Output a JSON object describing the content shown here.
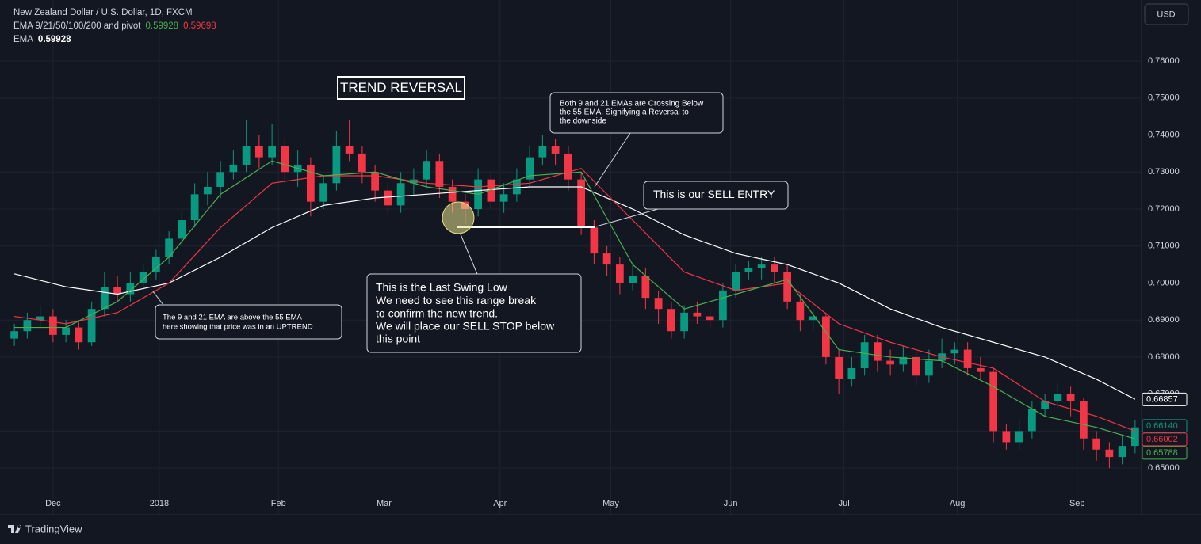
{
  "header": {
    "symbol": "New Zealand Dollar / U.S. Dollar, 1D, FXCM",
    "indicator": "EMA 9/21/50/100/200 and pivot",
    "indicator_values": [
      0.59928,
      0.59698
    ],
    "indicator_2": "EMA",
    "indicator_2_value": 0.59928,
    "currency": "USD"
  },
  "footer": {
    "brand": "TradingView"
  },
  "chart_data": {
    "type": "candlestick",
    "up_color": "#089981",
    "down_color": "#f23645",
    "grid": true,
    "xlim": [
      -0.5,
      87.5
    ],
    "xticks": [
      {
        "value": 3,
        "label": "Dec"
      },
      {
        "value": 11.25,
        "label": "2018"
      },
      {
        "value": 20.5,
        "label": "Feb"
      },
      {
        "value": 28.7,
        "label": "Mar"
      },
      {
        "value": 37.7,
        "label": "Apr"
      },
      {
        "value": 46.3,
        "label": "May"
      },
      {
        "value": 55.6,
        "label": "Jun"
      },
      {
        "value": 64.4,
        "label": "Jul"
      },
      {
        "value": 73.2,
        "label": "Aug"
      },
      {
        "value": 82.5,
        "label": "Sep"
      }
    ],
    "ylim": [
      0.6374,
      0.7765
    ],
    "yticks": [
      {
        "value": 0.65,
        "label": "0.65000"
      },
      {
        "value": 0.66,
        "label": "0.66000"
      },
      {
        "value": 0.67,
        "label": "0.67000"
      },
      {
        "value": 0.68,
        "label": "0.68000"
      },
      {
        "value": 0.69,
        "label": "0.69000"
      },
      {
        "value": 0.7,
        "label": "0.70000"
      },
      {
        "value": 0.71,
        "label": "0.71000"
      },
      {
        "value": 0.72,
        "label": "0.72000"
      },
      {
        "value": 0.73,
        "label": "0.73000"
      },
      {
        "value": 0.74,
        "label": "0.74000"
      },
      {
        "value": 0.75,
        "label": "0.75000"
      },
      {
        "value": 0.76,
        "label": "0.76000"
      }
    ],
    "candles": [
      [
        0.685,
        0.689,
        0.683,
        0.687
      ],
      [
        0.687,
        0.692,
        0.685,
        0.69
      ],
      [
        0.69,
        0.694,
        0.688,
        0.691
      ],
      [
        0.691,
        0.693,
        0.684,
        0.686
      ],
      [
        0.686,
        0.69,
        0.684,
        0.688
      ],
      [
        0.688,
        0.69,
        0.682,
        0.684
      ],
      [
        0.684,
        0.695,
        0.683,
        0.693
      ],
      [
        0.693,
        0.703,
        0.691,
        0.699
      ],
      [
        0.699,
        0.702,
        0.695,
        0.697
      ],
      [
        0.697,
        0.703,
        0.695,
        0.7
      ],
      [
        0.7,
        0.705,
        0.698,
        0.703
      ],
      [
        0.703,
        0.709,
        0.701,
        0.707
      ],
      [
        0.707,
        0.714,
        0.705,
        0.712
      ],
      [
        0.712,
        0.719,
        0.71,
        0.717
      ],
      [
        0.717,
        0.727,
        0.715,
        0.724
      ],
      [
        0.724,
        0.73,
        0.721,
        0.726
      ],
      [
        0.726,
        0.733,
        0.723,
        0.73
      ],
      [
        0.73,
        0.736,
        0.728,
        0.732
      ],
      [
        0.732,
        0.744,
        0.73,
        0.737
      ],
      [
        0.737,
        0.74,
        0.731,
        0.734
      ],
      [
        0.734,
        0.743,
        0.732,
        0.737
      ],
      [
        0.737,
        0.739,
        0.727,
        0.73
      ],
      [
        0.73,
        0.736,
        0.726,
        0.732
      ],
      [
        0.732,
        0.734,
        0.718,
        0.722
      ],
      [
        0.722,
        0.729,
        0.72,
        0.727
      ],
      [
        0.727,
        0.741,
        0.725,
        0.737
      ],
      [
        0.737,
        0.744,
        0.733,
        0.735
      ],
      [
        0.735,
        0.737,
        0.727,
        0.73
      ],
      [
        0.73,
        0.732,
        0.722,
        0.725
      ],
      [
        0.725,
        0.727,
        0.719,
        0.721
      ],
      [
        0.721,
        0.73,
        0.719,
        0.727
      ],
      [
        0.727,
        0.731,
        0.724,
        0.728
      ],
      [
        0.728,
        0.736,
        0.726,
        0.733
      ],
      [
        0.733,
        0.735,
        0.723,
        0.726
      ],
      [
        0.726,
        0.728,
        0.719,
        0.722
      ],
      [
        0.722,
        0.724,
        0.716,
        0.72
      ],
      [
        0.72,
        0.731,
        0.718,
        0.728
      ],
      [
        0.728,
        0.73,
        0.72,
        0.722
      ],
      [
        0.722,
        0.727,
        0.719,
        0.724
      ],
      [
        0.724,
        0.731,
        0.722,
        0.728
      ],
      [
        0.728,
        0.737,
        0.726,
        0.734
      ],
      [
        0.734,
        0.74,
        0.732,
        0.737
      ],
      [
        0.737,
        0.739,
        0.732,
        0.735
      ],
      [
        0.735,
        0.737,
        0.725,
        0.728
      ],
      [
        0.728,
        0.73,
        0.713,
        0.715
      ],
      [
        0.715,
        0.717,
        0.705,
        0.708
      ],
      [
        0.708,
        0.71,
        0.702,
        0.705
      ],
      [
        0.705,
        0.707,
        0.697,
        0.7
      ],
      [
        0.7,
        0.705,
        0.698,
        0.702
      ],
      [
        0.702,
        0.704,
        0.693,
        0.696
      ],
      [
        0.696,
        0.698,
        0.689,
        0.693
      ],
      [
        0.693,
        0.695,
        0.685,
        0.687
      ],
      [
        0.687,
        0.694,
        0.685,
        0.692
      ],
      [
        0.692,
        0.695,
        0.689,
        0.691
      ],
      [
        0.691,
        0.693,
        0.688,
        0.69
      ],
      [
        0.69,
        0.7,
        0.688,
        0.698
      ],
      [
        0.698,
        0.705,
        0.696,
        0.703
      ],
      [
        0.703,
        0.706,
        0.701,
        0.704
      ],
      [
        0.704,
        0.707,
        0.701,
        0.705
      ],
      [
        0.705,
        0.707,
        0.7,
        0.703
      ],
      [
        0.703,
        0.705,
        0.693,
        0.695
      ],
      [
        0.695,
        0.697,
        0.687,
        0.69
      ],
      [
        0.69,
        0.693,
        0.687,
        0.691
      ],
      [
        0.691,
        0.692,
        0.678,
        0.68
      ],
      [
        0.68,
        0.682,
        0.67,
        0.674
      ],
      [
        0.674,
        0.68,
        0.672,
        0.677
      ],
      [
        0.677,
        0.686,
        0.675,
        0.684
      ],
      [
        0.684,
        0.686,
        0.676,
        0.679
      ],
      [
        0.679,
        0.682,
        0.675,
        0.678
      ],
      [
        0.678,
        0.683,
        0.676,
        0.68
      ],
      [
        0.68,
        0.682,
        0.672,
        0.675
      ],
      [
        0.675,
        0.682,
        0.673,
        0.679
      ],
      [
        0.679,
        0.685,
        0.677,
        0.681
      ],
      [
        0.681,
        0.684,
        0.678,
        0.682
      ],
      [
        0.682,
        0.684,
        0.675,
        0.677
      ],
      [
        0.677,
        0.68,
        0.674,
        0.676
      ],
      [
        0.676,
        0.677,
        0.657,
        0.66
      ],
      [
        0.66,
        0.662,
        0.655,
        0.657
      ],
      [
        0.657,
        0.663,
        0.655,
        0.66
      ],
      [
        0.66,
        0.668,
        0.658,
        0.666
      ],
      [
        0.666,
        0.67,
        0.664,
        0.668
      ],
      [
        0.668,
        0.673,
        0.666,
        0.67
      ],
      [
        0.67,
        0.672,
        0.664,
        0.668
      ],
      [
        0.668,
        0.669,
        0.655,
        0.658
      ],
      [
        0.658,
        0.66,
        0.652,
        0.655
      ],
      [
        0.655,
        0.657,
        0.65,
        0.653
      ],
      [
        0.653,
        0.659,
        0.651,
        0.656
      ],
      [
        0.656,
        0.663,
        0.654,
        0.661
      ]
    ],
    "lines": [
      {
        "color": "#ffffff",
        "x": [
          0,
          4,
          8,
          12,
          16,
          20,
          24,
          28,
          32,
          36,
          40,
          44,
          48,
          52,
          56,
          60,
          64,
          68,
          72,
          76,
          80,
          84,
          87
        ],
        "values": [
          0.7025,
          0.699,
          0.697,
          0.7,
          0.707,
          0.715,
          0.721,
          0.723,
          0.724,
          0.725,
          0.726,
          0.726,
          0.72,
          0.713,
          0.708,
          0.705,
          0.7,
          0.693,
          0.688,
          0.684,
          0.68,
          0.674,
          0.6686
        ]
      },
      {
        "color": "#f23645",
        "x": [
          0,
          4,
          8,
          12,
          16,
          20,
          24,
          28,
          32,
          36,
          40,
          44,
          48,
          52,
          56,
          60,
          64,
          68,
          72,
          76,
          80,
          84,
          87
        ],
        "values": [
          0.691,
          0.689,
          0.692,
          0.7,
          0.715,
          0.727,
          0.729,
          0.729,
          0.727,
          0.726,
          0.727,
          0.731,
          0.717,
          0.703,
          0.698,
          0.7,
          0.689,
          0.684,
          0.68,
          0.677,
          0.668,
          0.664,
          0.66
        ]
      },
      {
        "color": "#4caf50",
        "x": [
          0,
          4,
          8,
          12,
          16,
          20,
          24,
          28,
          32,
          36,
          40,
          44,
          48,
          52,
          56,
          60,
          64,
          68,
          72,
          76,
          80,
          84,
          87
        ],
        "values": [
          0.688,
          0.688,
          0.695,
          0.707,
          0.724,
          0.733,
          0.729,
          0.73,
          0.726,
          0.724,
          0.729,
          0.73,
          0.705,
          0.693,
          0.697,
          0.701,
          0.682,
          0.68,
          0.679,
          0.672,
          0.664,
          0.661,
          0.6579
        ]
      }
    ],
    "price_labels": [
      {
        "value": 0.66857,
        "label": "0.66857",
        "color": "#ffffff",
        "fill": "#131722",
        "text_color": "#ffffff"
      },
      {
        "value": 0.6614,
        "label": "0.66140",
        "color": "#089981",
        "fill": "#131722",
        "text_color": "#089981"
      },
      {
        "value": 0.66002,
        "label": "0.66002",
        "color": "#f23645",
        "fill": "#131722",
        "text_color": "#f23645"
      },
      {
        "value": 0.65788,
        "label": "0.65788",
        "color": "#4caf50",
        "fill": "#131722",
        "text_color": "#4caf50"
      }
    ],
    "annotations": {
      "title": "TREND REVERSAL",
      "crossing": [
        "Both 9 and 21 EMAs are Crossing Below",
        "the 55 EMA. Signifying a Reversal to",
        "the downside"
      ],
      "entry": "This is our SELL ENTRY",
      "swing": [
        "This is the Last Swing Low",
        "We need to see this range break",
        "to confirm the new trend.",
        "We will place our SELL STOP below",
        "this point"
      ],
      "uptrend": [
        "The 9 and 21 EMA are above the 55 EMA",
        "here showing that price was in an UPTREND"
      ]
    }
  }
}
